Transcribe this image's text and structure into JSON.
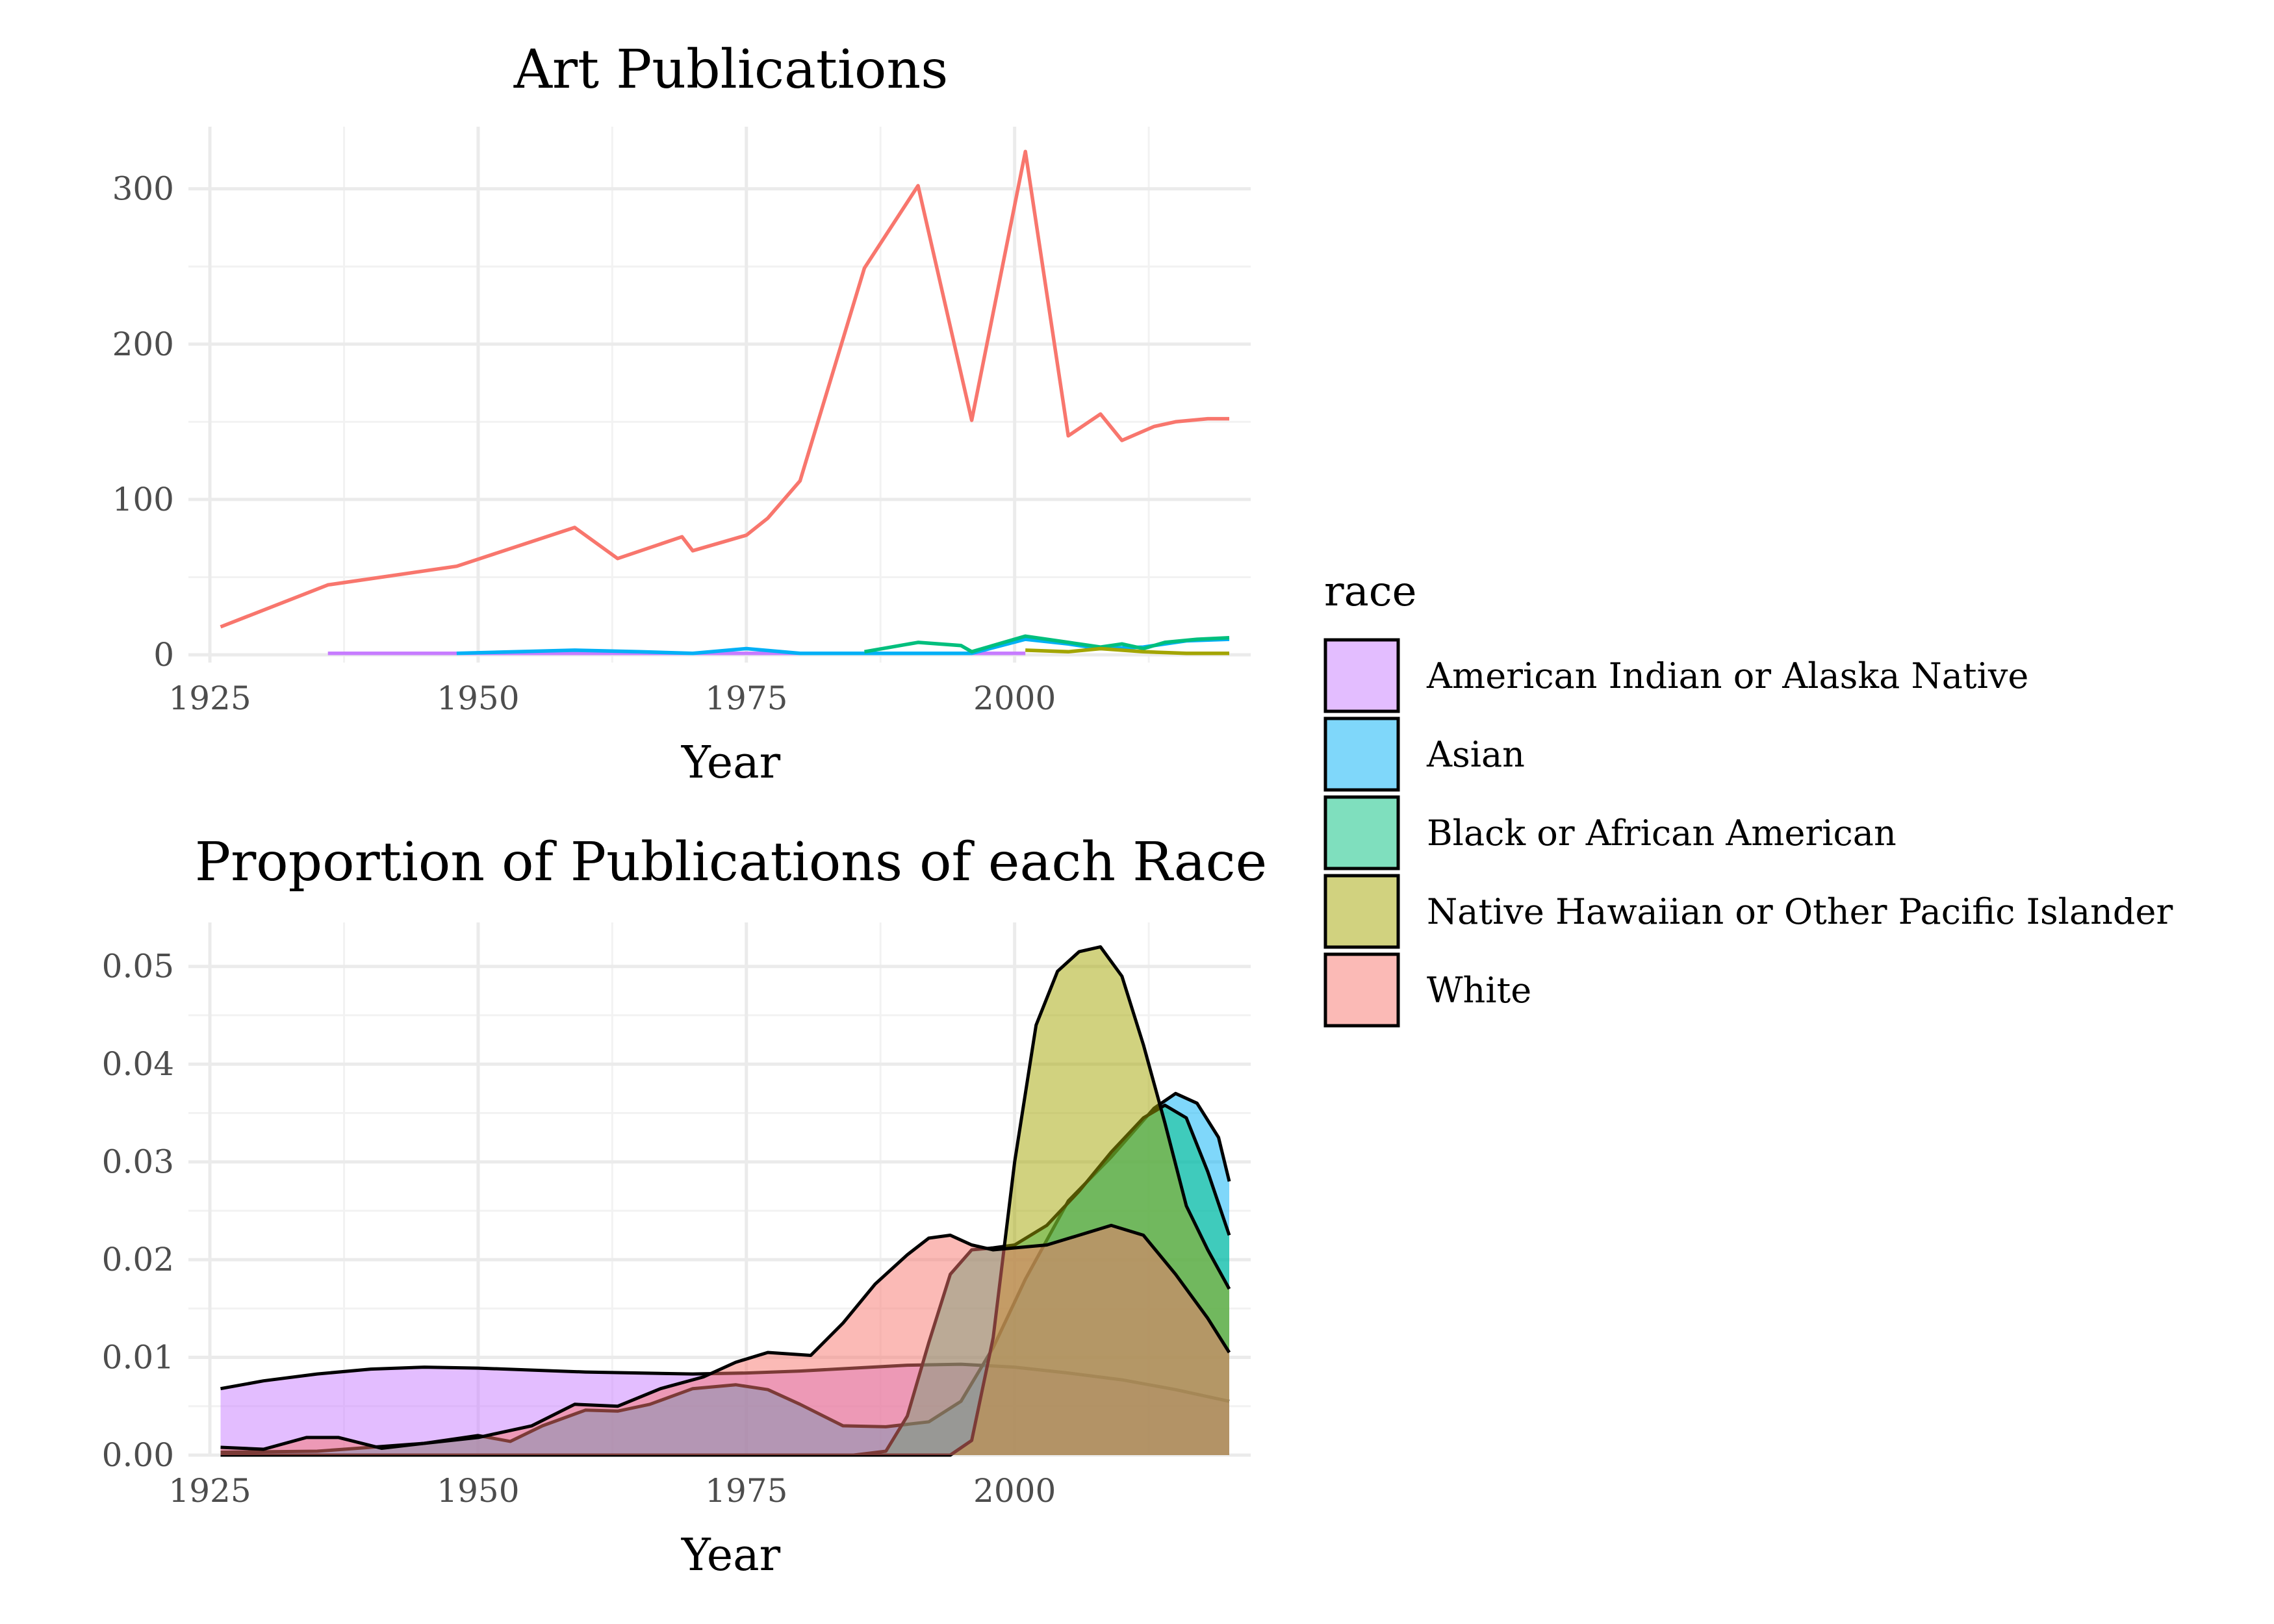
{
  "chart_data": [
    {
      "type": "line",
      "title": "Art Publications",
      "xlabel": "Year",
      "ylabel": "",
      "xlim": [
        1923,
        2022
      ],
      "ylim": [
        -5,
        340
      ],
      "xticks": [
        1925,
        1950,
        1975,
        2000
      ],
      "yticks": [
        0,
        100,
        200,
        300
      ],
      "grid": true,
      "series": [
        {
          "name": "White",
          "color": "#F8766D",
          "points": [
            [
              1926,
              18
            ],
            [
              1936,
              45
            ],
            [
              1948,
              57
            ],
            [
              1959,
              82
            ],
            [
              1963,
              62
            ],
            [
              1969,
              76
            ],
            [
              1970,
              67
            ],
            [
              1975,
              77
            ],
            [
              1977,
              88
            ],
            [
              1980,
              112
            ],
            [
              1986,
              249
            ],
            [
              1991,
              302
            ],
            [
              1996,
              151
            ],
            [
              2001,
              324
            ],
            [
              2005,
              141
            ],
            [
              2008,
              155
            ],
            [
              2010,
              138
            ],
            [
              2013,
              147
            ],
            [
              2015,
              150
            ],
            [
              2018,
              152
            ],
            [
              2020,
              152
            ]
          ]
        },
        {
          "name": "American Indian or Alaska Native",
          "color": "#C77CFF",
          "points": [
            [
              1936,
              1
            ],
            [
              1948,
              1
            ],
            [
              1975,
              1
            ],
            [
              1985,
              1
            ],
            [
              1995,
              1
            ],
            [
              2001,
              1
            ]
          ]
        },
        {
          "name": "Asian",
          "color": "#00B0F6",
          "points": [
            [
              1948,
              1
            ],
            [
              1959,
              3
            ],
            [
              1965,
              2
            ],
            [
              1970,
              1
            ],
            [
              1975,
              4
            ],
            [
              1980,
              1
            ],
            [
              1990,
              1
            ],
            [
              1996,
              1
            ],
            [
              2001,
              10
            ],
            [
              2005,
              7
            ],
            [
              2008,
              4
            ],
            [
              2012,
              5
            ],
            [
              2016,
              9
            ],
            [
              2020,
              10
            ]
          ]
        },
        {
          "name": "Black or African American",
          "color": "#00BF7D",
          "points": [
            [
              1986,
              2
            ],
            [
              1991,
              8
            ],
            [
              1995,
              6
            ],
            [
              1996,
              2
            ],
            [
              2001,
              12
            ],
            [
              2005,
              8
            ],
            [
              2008,
              5
            ],
            [
              2010,
              7
            ],
            [
              2012,
              4
            ],
            [
              2014,
              8
            ],
            [
              2017,
              10
            ],
            [
              2020,
              11
            ]
          ]
        },
        {
          "name": "Native Hawaiian or Other Pacific Islander",
          "color": "#A3A500",
          "points": [
            [
              2001,
              3
            ],
            [
              2005,
              2
            ],
            [
              2008,
              4
            ],
            [
              2012,
              2
            ],
            [
              2016,
              1
            ],
            [
              2020,
              1
            ]
          ]
        }
      ]
    },
    {
      "type": "area",
      "title": "Proportion of Publications of each Race",
      "xlabel": "Year",
      "ylabel": "",
      "xlim": [
        1923,
        2022
      ],
      "ylim": [
        0,
        0.0545
      ],
      "xticks": [
        1925,
        1950,
        1975,
        2000
      ],
      "yticks": [
        0,
        0.01,
        0.02,
        0.03,
        0.04,
        0.05
      ],
      "ytick_labels": [
        "0.00",
        "0.01",
        "0.02",
        "0.03",
        "0.04",
        "0.05"
      ],
      "grid": true,
      "series": [
        {
          "name": "American Indian or Alaska Native",
          "color": "#C77CFF",
          "points": [
            [
              1926,
              0.0068
            ],
            [
              1930,
              0.0076
            ],
            [
              1935,
              0.0083
            ],
            [
              1940,
              0.0088
            ],
            [
              1945,
              0.009
            ],
            [
              1950,
              0.0089
            ],
            [
              1955,
              0.0087
            ],
            [
              1960,
              0.0085
            ],
            [
              1965,
              0.0084
            ],
            [
              1970,
              0.0083
            ],
            [
              1975,
              0.0084
            ],
            [
              1980,
              0.0086
            ],
            [
              1985,
              0.0089
            ],
            [
              1990,
              0.0092
            ],
            [
              1995,
              0.0093
            ],
            [
              2000,
              0.009
            ],
            [
              2005,
              0.0084
            ],
            [
              2010,
              0.0077
            ],
            [
              2015,
              0.0067
            ],
            [
              2020,
              0.0055
            ]
          ]
        },
        {
          "name": "Asian",
          "color": "#00B0F6",
          "points": [
            [
              1926,
              0.0003
            ],
            [
              1935,
              0.0004
            ],
            [
              1940,
              0.0008
            ],
            [
              1945,
              0.0012
            ],
            [
              1950,
              0.002
            ],
            [
              1953,
              0.0014
            ],
            [
              1956,
              0.003
            ],
            [
              1960,
              0.0046
            ],
            [
              1963,
              0.0045
            ],
            [
              1966,
              0.0052
            ],
            [
              1970,
              0.0068
            ],
            [
              1974,
              0.0072
            ],
            [
              1977,
              0.0067
            ],
            [
              1980,
              0.0052
            ],
            [
              1984,
              0.003
            ],
            [
              1988,
              0.0029
            ],
            [
              1992,
              0.0034
            ],
            [
              1995,
              0.0055
            ],
            [
              1998,
              0.011
            ],
            [
              2001,
              0.018
            ],
            [
              2005,
              0.026
            ],
            [
              2009,
              0.0305
            ],
            [
              2013,
              0.0355
            ],
            [
              2015,
              0.037
            ],
            [
              2017,
              0.036
            ],
            [
              2019,
              0.0325
            ],
            [
              2020,
              0.028
            ]
          ]
        },
        {
          "name": "Black or African American",
          "color": "#00BF7D",
          "points": [
            [
              1926,
              0.0
            ],
            [
              1985,
              0.0
            ],
            [
              1988,
              0.0004
            ],
            [
              1990,
              0.004
            ],
            [
              1992,
              0.0115
            ],
            [
              1994,
              0.0185
            ],
            [
              1996,
              0.021
            ],
            [
              1998,
              0.0212
            ],
            [
              2000,
              0.0215
            ],
            [
              2003,
              0.0235
            ],
            [
              2006,
              0.027
            ],
            [
              2009,
              0.031
            ],
            [
              2012,
              0.0345
            ],
            [
              2014,
              0.0358
            ],
            [
              2016,
              0.0345
            ],
            [
              2018,
              0.029
            ],
            [
              2020,
              0.0225
            ]
          ]
        },
        {
          "name": "Native Hawaiian or Other Pacific Islander",
          "color": "#A3A500",
          "points": [
            [
              1926,
              0.0
            ],
            [
              1994,
              0.0
            ],
            [
              1996,
              0.0015
            ],
            [
              1998,
              0.012
            ],
            [
              2000,
              0.03
            ],
            [
              2002,
              0.044
            ],
            [
              2004,
              0.0495
            ],
            [
              2006,
              0.0515
            ],
            [
              2008,
              0.052
            ],
            [
              2010,
              0.049
            ],
            [
              2012,
              0.042
            ],
            [
              2014,
              0.034
            ],
            [
              2016,
              0.0255
            ],
            [
              2018,
              0.021
            ],
            [
              2020,
              0.017
            ]
          ]
        },
        {
          "name": "White",
          "color": "#F8766D",
          "points": [
            [
              1926,
              0.0008
            ],
            [
              1930,
              0.0006
            ],
            [
              1934,
              0.0018
            ],
            [
              1937,
              0.0018
            ],
            [
              1941,
              0.0007
            ],
            [
              1945,
              0.0012
            ],
            [
              1950,
              0.0018
            ],
            [
              1955,
              0.003
            ],
            [
              1959,
              0.0052
            ],
            [
              1963,
              0.005
            ],
            [
              1967,
              0.0068
            ],
            [
              1971,
              0.008
            ],
            [
              1974,
              0.0095
            ],
            [
              1977,
              0.0105
            ],
            [
              1981,
              0.0102
            ],
            [
              1984,
              0.0135
            ],
            [
              1987,
              0.0175
            ],
            [
              1990,
              0.0205
            ],
            [
              1992,
              0.0222
            ],
            [
              1994,
              0.0225
            ],
            [
              1996,
              0.0215
            ],
            [
              1998,
              0.021
            ],
            [
              2000,
              0.0212
            ],
            [
              2003,
              0.0215
            ],
            [
              2006,
              0.0225
            ],
            [
              2009,
              0.0235
            ],
            [
              2012,
              0.0225
            ],
            [
              2015,
              0.0185
            ],
            [
              2018,
              0.014
            ],
            [
              2020,
              0.0105
            ]
          ]
        }
      ]
    }
  ],
  "legend": {
    "title": "race",
    "placement": "right",
    "items": [
      {
        "label": "American Indian or Alaska Native",
        "color": "#C77CFF"
      },
      {
        "label": "Asian",
        "color": "#00B0F6"
      },
      {
        "label": "Black or African American",
        "color": "#00BF7D"
      },
      {
        "label": "Native Hawaiian or Other Pacific Islander",
        "color": "#A3A500"
      },
      {
        "label": "White",
        "color": "#F8766D"
      }
    ]
  }
}
